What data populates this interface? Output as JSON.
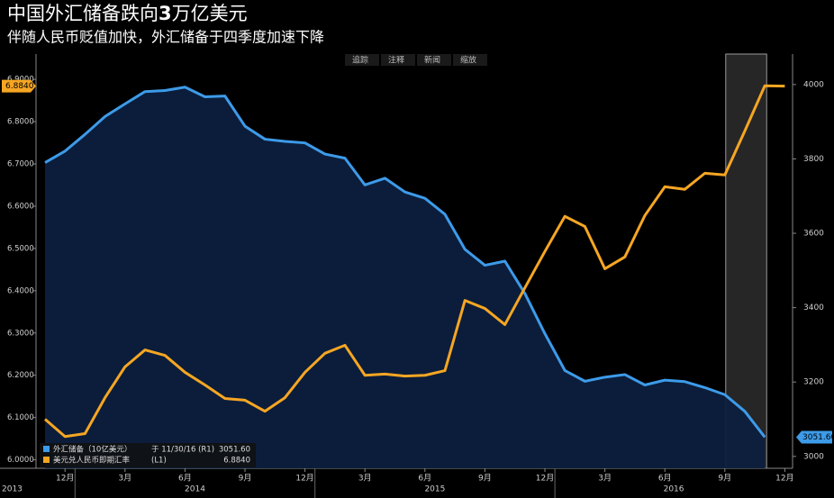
{
  "chart_data": {
    "type": "line",
    "title": "中国外汇储备跌向3万亿美元",
    "subtitle": "伴随人民币贬值加快，外汇储备于四季度加速下降",
    "toolbar": [
      "追踪",
      "注释",
      "新闻",
      "缩放"
    ],
    "categories": [
      null,
      "12月",
      null,
      null,
      "3月",
      null,
      null,
      "6月",
      null,
      null,
      "9月",
      null,
      null,
      "12月",
      null,
      null,
      "3月",
      null,
      null,
      "6月",
      null,
      null,
      "9月",
      null,
      null,
      "12月",
      null,
      null,
      "3月",
      null,
      null,
      "6月",
      null,
      null,
      "9月",
      null,
      null,
      "12月"
    ],
    "years": [
      "2013",
      "2014",
      "2015",
      "2016"
    ],
    "highlight": [
      34,
      36
    ],
    "ylim": [
      5.98,
      6.96
    ],
    "yticks": [
      {
        "value": 6.0,
        "label": "6.0000"
      },
      {
        "value": 6.1,
        "label": "6.1000"
      },
      {
        "value": 6.2,
        "label": "6.2000"
      },
      {
        "value": 6.3,
        "label": "6.3000"
      },
      {
        "value": 6.4,
        "label": "6.4000"
      },
      {
        "value": 6.5,
        "label": "6.5000"
      },
      {
        "value": 6.6,
        "label": "6.6000"
      },
      {
        "value": 6.7,
        "label": "6.7000"
      },
      {
        "value": 6.8,
        "label": "6.8000"
      },
      {
        "value": 6.9,
        "label": "6.9000"
      }
    ],
    "y2lim": [
      2968,
      4082
    ],
    "y2ticks": [
      3000,
      3200,
      3400,
      3600,
      3800,
      4000
    ],
    "grid": false,
    "legend": "lower left",
    "series": [
      {
        "name": "外汇储备（10亿美元）",
        "legend_note": "于 11/30/16 (R1)",
        "axis": "y2",
        "style": "area",
        "color": "#3d9be9",
        "fill": "#0c1f3d",
        "values": [
          3790,
          3821,
          3866,
          3914,
          3948,
          3981,
          3984,
          3993,
          3967,
          3969,
          3888,
          3853,
          3847,
          3843,
          3813,
          3802,
          3730,
          3748,
          3711,
          3694,
          3651,
          3557,
          3514,
          3525,
          3438,
          3330,
          3231,
          3202,
          3213,
          3220,
          3192,
          3205,
          3201,
          3185,
          3166,
          3121,
          3051.6,
          null
        ],
        "value_labels": [
          null,
          null,
          null,
          null,
          null,
          null,
          null,
          null,
          null,
          null,
          null,
          null,
          null,
          null,
          null,
          null,
          null,
          null,
          null,
          null,
          null,
          null,
          null,
          null,
          null,
          null,
          null,
          null,
          null,
          null,
          null,
          null,
          null,
          null,
          null,
          null,
          "3051.60",
          null
        ]
      },
      {
        "name": "美元兑人民币即期汇率",
        "legend_note": "(L1)",
        "axis": "y",
        "style": "line",
        "color": "#f6a623",
        "values": [
          6.096,
          6.055,
          6.062,
          6.147,
          6.22,
          6.26,
          6.247,
          6.207,
          6.177,
          6.145,
          6.141,
          6.115,
          6.147,
          6.207,
          6.252,
          6.271,
          6.2,
          6.203,
          6.198,
          6.2,
          6.211,
          6.377,
          6.358,
          6.32,
          6.407,
          6.493,
          6.576,
          6.552,
          6.452,
          6.48,
          6.578,
          6.646,
          6.64,
          6.678,
          6.674,
          6.778,
          6.885,
          6.884
        ],
        "value_labels": [
          null,
          null,
          null,
          null,
          null,
          null,
          null,
          null,
          null,
          null,
          null,
          null,
          null,
          null,
          null,
          null,
          null,
          null,
          null,
          null,
          null,
          null,
          null,
          null,
          null,
          null,
          null,
          null,
          null,
          null,
          null,
          null,
          null,
          null,
          null,
          null,
          null,
          "6.8840"
        ]
      }
    ]
  }
}
